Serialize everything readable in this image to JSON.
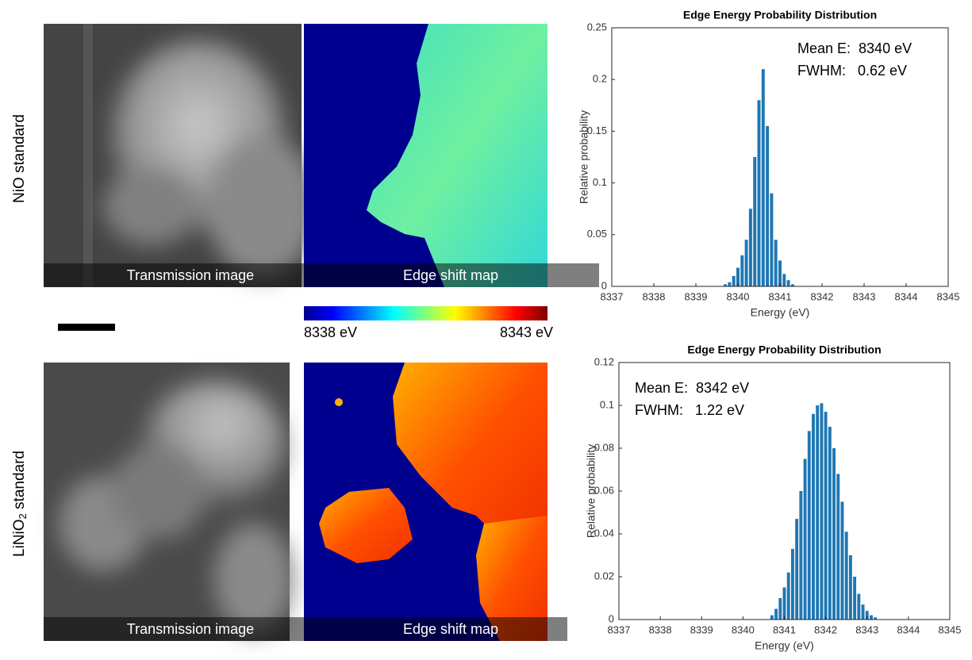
{
  "panels": [
    {
      "row_label": "NiO standard",
      "transmission_caption": "Transmission image",
      "map_caption": "Edge shift map"
    },
    {
      "row_label_parts": [
        "LiNiO",
        "2",
        " standard"
      ],
      "transmission_caption": "Transmission image",
      "map_caption": "Edge shift map"
    }
  ],
  "colorbar": {
    "min_label": "8338 eV",
    "max_label": "8343 eV"
  },
  "chart_data": [
    {
      "type": "bar",
      "title": "Edge Energy Probability Distribution",
      "xlabel": "Energy (eV)",
      "ylabel": "Relative probability",
      "annotations": [
        "Mean E:  8340 eV",
        "FWHM:   0.62 eV"
      ],
      "color": "#1f77b4",
      "x": [
        8339.7,
        8339.8,
        8339.9,
        8340.0,
        8340.1,
        8340.2,
        8340.3,
        8340.4,
        8340.5,
        8340.6,
        8340.7,
        8340.8,
        8340.9,
        8341.0,
        8341.1,
        8341.2,
        8341.3
      ],
      "values": [
        0.002,
        0.004,
        0.01,
        0.018,
        0.03,
        0.045,
        0.075,
        0.125,
        0.18,
        0.21,
        0.155,
        0.09,
        0.045,
        0.025,
        0.012,
        0.006,
        0.002
      ],
      "xlim": [
        8337,
        8345
      ],
      "xticks": [
        8337,
        8338,
        8339,
        8340,
        8341,
        8342,
        8343,
        8344,
        8345
      ],
      "ylim": [
        0,
        0.25
      ],
      "yticks": [
        0,
        0.05,
        0.1,
        0.15,
        0.2,
        0.25
      ]
    },
    {
      "type": "bar",
      "title": "Edge Energy Probability Distribution",
      "xlabel": "Energy (eV)",
      "ylabel": "Relative probability",
      "annotations": [
        "Mean E:  8342 eV",
        "FWHM:   1.22 eV"
      ],
      "color": "#1f77b4",
      "x": [
        8340.7,
        8340.8,
        8340.9,
        8341.0,
        8341.1,
        8341.2,
        8341.3,
        8341.4,
        8341.5,
        8341.6,
        8341.7,
        8341.8,
        8341.9,
        8342.0,
        8342.1,
        8342.2,
        8342.3,
        8342.4,
        8342.5,
        8342.6,
        8342.7,
        8342.8,
        8342.9,
        8343.0,
        8343.1,
        8343.2
      ],
      "values": [
        0.002,
        0.005,
        0.01,
        0.015,
        0.022,
        0.033,
        0.047,
        0.06,
        0.075,
        0.088,
        0.096,
        0.1,
        0.101,
        0.097,
        0.09,
        0.08,
        0.068,
        0.055,
        0.041,
        0.03,
        0.02,
        0.012,
        0.007,
        0.004,
        0.002,
        0.001
      ],
      "xlim": [
        8337,
        8345
      ],
      "xticks": [
        8337,
        8338,
        8339,
        8340,
        8341,
        8342,
        8343,
        8344,
        8345
      ],
      "ylim": [
        0,
        0.12
      ],
      "yticks": [
        0,
        0.02,
        0.04,
        0.06,
        0.08,
        0.1,
        0.12
      ]
    }
  ]
}
